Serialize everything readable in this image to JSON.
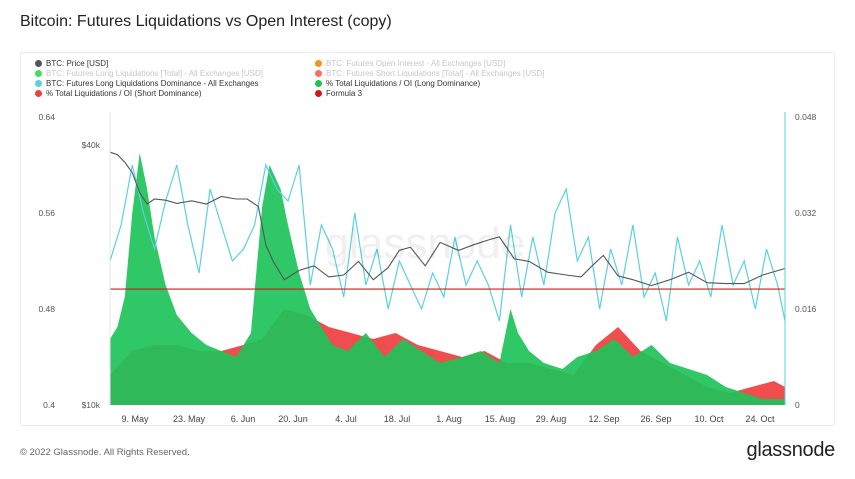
{
  "title": "Bitcoin: Futures Liquidations vs Open Interest (copy)",
  "footer": {
    "copyright": "© 2022 Glassnode. All Rights Reserved.",
    "brand": "glassnode"
  },
  "watermark": "glassnode",
  "legend": [
    {
      "label": "BTC: Price [USD]",
      "color": "#555555",
      "muted": false
    },
    {
      "label": "BTC: Futures Open Interest - All Exchanges [USD]",
      "color": "#f7931a",
      "muted": true
    },
    {
      "label": "BTC: Futures Long Liquidations [Total] - All Exchanges [USD]",
      "color": "#4cd964",
      "muted": true
    },
    {
      "label": "BTC: Futures Short Liquidations [Total] - All Exchanges [USD]",
      "color": "#ff6b6b",
      "muted": true
    },
    {
      "label": "BTC: Futures Long Liquidations Dominance - All Exchanges",
      "color": "#5ad0e0",
      "muted": false
    },
    {
      "label": "% Total Liquidations / OI (Long Dominance)",
      "color": "#1ec25a",
      "muted": false
    },
    {
      "label": "% Total Liquidations / OI (Short Dominance)",
      "color": "#ef3f3f",
      "muted": false
    },
    {
      "label": "Formula 3",
      "color": "#d11919",
      "muted": false
    }
  ],
  "chart_data": {
    "type": "area",
    "x_ticks": [
      "9. May",
      "23. May",
      "6. Jun",
      "20. Jun",
      "4. Jul",
      "18. Jul",
      "1. Aug",
      "15. Aug",
      "29. Aug",
      "12. Sep",
      "26. Sep",
      "10. Oct",
      "24. Oct"
    ],
    "x_range": [
      "2022-05-02",
      "2022-10-31"
    ],
    "left_axis_dominance": {
      "ticks": [
        "0.64",
        "0.56",
        "0.48",
        "0.4"
      ],
      "ylim": [
        0.4,
        0.64
      ]
    },
    "left_axis_price": {
      "ticks": [
        "$40k",
        "$10k"
      ],
      "scale": "log",
      "ylim": [
        10000,
        40000
      ]
    },
    "right_axis": {
      "ticks": [
        "0.048",
        "0.032",
        "0.016",
        "0"
      ],
      "ylim": [
        0,
        0.048
      ]
    },
    "formula3_value": 0.4966,
    "series": [
      {
        "name": "BTC: Price [USD]",
        "axis": "price",
        "x": [
          "2022-05-02",
          "2022-05-04",
          "2022-05-06",
          "2022-05-08",
          "2022-05-10",
          "2022-05-12",
          "2022-05-14",
          "2022-05-17",
          "2022-05-20",
          "2022-05-24",
          "2022-05-28",
          "2022-06-01",
          "2022-06-05",
          "2022-06-08",
          "2022-06-11",
          "2022-06-13",
          "2022-06-15",
          "2022-06-18",
          "2022-06-22",
          "2022-06-26",
          "2022-06-30",
          "2022-07-04",
          "2022-07-08",
          "2022-07-12",
          "2022-07-16",
          "2022-07-19",
          "2022-07-22",
          "2022-07-26",
          "2022-07-30",
          "2022-08-04",
          "2022-08-08",
          "2022-08-12",
          "2022-08-15",
          "2022-08-19",
          "2022-08-23",
          "2022-08-28",
          "2022-09-02",
          "2022-09-06",
          "2022-09-09",
          "2022-09-12",
          "2022-09-16",
          "2022-09-20",
          "2022-09-25",
          "2022-09-30",
          "2022-10-05",
          "2022-10-10",
          "2022-10-15",
          "2022-10-20",
          "2022-10-25",
          "2022-10-31"
        ],
        "values": [
          38500,
          38000,
          36500,
          34500,
          31000,
          29200,
          30000,
          29800,
          29300,
          29700,
          29200,
          30400,
          30000,
          30000,
          28800,
          23500,
          21500,
          19500,
          20500,
          21000,
          19800,
          20000,
          21500,
          19500,
          20800,
          22800,
          23200,
          21000,
          23800,
          22800,
          23500,
          24100,
          24500,
          21800,
          21500,
          20300,
          20000,
          19800,
          21000,
          22200,
          19900,
          19500,
          18900,
          19500,
          20300,
          19200,
          19100,
          19100,
          20000,
          20700
        ]
      },
      {
        "name": "BTC: Futures Long Liquidations Dominance - All Exchanges",
        "axis": "dominance",
        "x": [
          "2022-05-02",
          "2022-05-05",
          "2022-05-08",
          "2022-05-11",
          "2022-05-14",
          "2022-05-17",
          "2022-05-20",
          "2022-05-23",
          "2022-05-26",
          "2022-05-29",
          "2022-06-01",
          "2022-06-04",
          "2022-06-07",
          "2022-06-10",
          "2022-06-13",
          "2022-06-16",
          "2022-06-19",
          "2022-06-22",
          "2022-06-25",
          "2022-06-28",
          "2022-07-01",
          "2022-07-04",
          "2022-07-07",
          "2022-07-10",
          "2022-07-13",
          "2022-07-16",
          "2022-07-19",
          "2022-07-22",
          "2022-07-25",
          "2022-07-28",
          "2022-07-31",
          "2022-08-03",
          "2022-08-06",
          "2022-08-09",
          "2022-08-12",
          "2022-08-15",
          "2022-08-18",
          "2022-08-21",
          "2022-08-24",
          "2022-08-27",
          "2022-08-30",
          "2022-09-02",
          "2022-09-05",
          "2022-09-08",
          "2022-09-11",
          "2022-09-14",
          "2022-09-17",
          "2022-09-20",
          "2022-09-23",
          "2022-09-26",
          "2022-09-29",
          "2022-10-02",
          "2022-10-05",
          "2022-10-08",
          "2022-10-11",
          "2022-10-14",
          "2022-10-17",
          "2022-10-20",
          "2022-10-23",
          "2022-10-26",
          "2022-10-29",
          "2022-10-31"
        ],
        "values": [
          0.52,
          0.55,
          0.6,
          0.56,
          0.53,
          0.57,
          0.6,
          0.55,
          0.51,
          0.58,
          0.55,
          0.52,
          0.53,
          0.55,
          0.6,
          0.58,
          0.57,
          0.6,
          0.5,
          0.55,
          0.53,
          0.49,
          0.56,
          0.5,
          0.53,
          0.48,
          0.52,
          0.5,
          0.48,
          0.51,
          0.49,
          0.54,
          0.5,
          0.52,
          0.5,
          0.47,
          0.55,
          0.49,
          0.54,
          0.5,
          0.56,
          0.58,
          0.52,
          0.54,
          0.48,
          0.53,
          0.5,
          0.55,
          0.49,
          0.51,
          0.47,
          0.54,
          0.5,
          0.52,
          0.49,
          0.55,
          0.5,
          0.52,
          0.48,
          0.53,
          0.5,
          0.47
        ]
      },
      {
        "name": "% Total Liquidations / OI (Long Dominance)",
        "axis": "right",
        "color": "#1ec25a",
        "x": [
          "2022-05-02",
          "2022-05-04",
          "2022-05-06",
          "2022-05-08",
          "2022-05-10",
          "2022-05-12",
          "2022-05-14",
          "2022-05-17",
          "2022-05-20",
          "2022-05-24",
          "2022-05-28",
          "2022-06-01",
          "2022-06-05",
          "2022-06-09",
          "2022-06-12",
          "2022-06-14",
          "2022-06-17",
          "2022-06-19",
          "2022-06-22",
          "2022-06-25",
          "2022-06-28",
          "2022-07-01",
          "2022-07-05",
          "2022-07-10",
          "2022-07-15",
          "2022-07-20",
          "2022-07-25",
          "2022-07-30",
          "2022-08-05",
          "2022-08-10",
          "2022-08-15",
          "2022-08-18",
          "2022-08-20",
          "2022-08-23",
          "2022-08-27",
          "2022-09-01",
          "2022-09-05",
          "2022-09-10",
          "2022-09-15",
          "2022-09-20",
          "2022-09-25",
          "2022-09-30",
          "2022-10-05",
          "2022-10-10",
          "2022-10-15",
          "2022-10-20",
          "2022-10-25",
          "2022-10-31"
        ],
        "values": [
          0.011,
          0.013,
          0.018,
          0.032,
          0.042,
          0.036,
          0.028,
          0.02,
          0.015,
          0.012,
          0.01,
          0.009,
          0.008,
          0.012,
          0.033,
          0.04,
          0.036,
          0.03,
          0.022,
          0.016,
          0.013,
          0.01,
          0.009,
          0.012,
          0.008,
          0.011,
          0.009,
          0.007,
          0.008,
          0.009,
          0.007,
          0.016,
          0.012,
          0.009,
          0.007,
          0.006,
          0.008,
          0.009,
          0.011,
          0.008,
          0.01,
          0.007,
          0.006,
          0.005,
          0.003,
          0.002,
          0.001,
          0.001
        ]
      },
      {
        "name": "% Total Liquidations / OI (Short Dominance)",
        "axis": "right",
        "color": "#ef3f3f",
        "x": [
          "2022-05-02",
          "2022-05-08",
          "2022-05-14",
          "2022-05-20",
          "2022-05-26",
          "2022-06-01",
          "2022-06-07",
          "2022-06-12",
          "2022-06-18",
          "2022-06-24",
          "2022-06-30",
          "2022-07-06",
          "2022-07-12",
          "2022-07-18",
          "2022-07-24",
          "2022-07-30",
          "2022-08-05",
          "2022-08-11",
          "2022-08-17",
          "2022-08-23",
          "2022-08-29",
          "2022-09-04",
          "2022-09-10",
          "2022-09-16",
          "2022-09-22",
          "2022-09-28",
          "2022-10-04",
          "2022-10-10",
          "2022-10-16",
          "2022-10-22",
          "2022-10-28",
          "2022-10-31"
        ],
        "values": [
          0.005,
          0.009,
          0.01,
          0.01,
          0.009,
          0.009,
          0.01,
          0.011,
          0.016,
          0.015,
          0.013,
          0.012,
          0.011,
          0.012,
          0.01,
          0.009,
          0.008,
          0.009,
          0.007,
          0.007,
          0.006,
          0.005,
          0.01,
          0.013,
          0.009,
          0.007,
          0.005,
          0.003,
          0.002,
          0.003,
          0.004,
          0.003
        ]
      }
    ]
  }
}
